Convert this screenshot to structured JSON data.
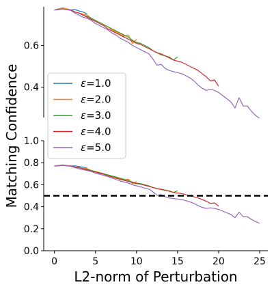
{
  "chart_data": {
    "type": "line",
    "xlabel": "L2-norm of Perturbation",
    "ylabel": "Matching Confidence",
    "legend": {
      "placement": "center-left"
    },
    "colors": [
      "#1f77b4",
      "#ff7f0e",
      "#2ca02c",
      "#d62728",
      "#9467bd"
    ],
    "panels": [
      {
        "name": "zoom",
        "xlim": [
          -1.3,
          26
        ],
        "ylim": [
          0.255,
          0.785
        ],
        "yticks": [
          0.4,
          0.6
        ],
        "ytick_labels": [
          "0.4",
          "0.6"
        ]
      },
      {
        "name": "full",
        "xlim": [
          -1.3,
          26
        ],
        "ylim": [
          0.0,
          1.0
        ],
        "yticks": [
          0.0,
          0.2,
          0.4,
          0.6,
          0.8,
          1.0
        ],
        "ytick_labels": [
          "0.0",
          "0.2",
          "0.4",
          "0.6",
          "0.8",
          "1.0"
        ],
        "xticks": [
          0,
          5,
          10,
          15,
          20,
          25
        ],
        "xtick_labels": [
          "0",
          "5",
          "10",
          "15",
          "20",
          "25"
        ],
        "hline": {
          "y": 0.5,
          "style": "dashed",
          "color": "#000000"
        }
      }
    ],
    "series": [
      {
        "name": "ε=1.0",
        "label_prefix": "ε",
        "label_value": "=1.0",
        "x": [
          0,
          0.5,
          1,
          1.5,
          2,
          2.5,
          3,
          3.5,
          4
        ],
        "y": [
          0.77,
          0.775,
          0.78,
          0.775,
          0.77,
          0.772,
          0.765,
          0.76,
          0.75
        ]
      },
      {
        "name": "ε=2.0",
        "label_prefix": "ε",
        "label_value": "=2.0",
        "x": [
          0,
          0.5,
          1,
          1.5,
          2,
          2.5,
          3,
          3.5,
          4,
          4.5,
          5,
          5.5,
          6,
          6.5,
          7,
          7.5,
          8,
          8.5,
          9,
          9.5,
          10
        ],
        "y": [
          0.77,
          0.775,
          0.78,
          0.776,
          0.77,
          0.76,
          0.755,
          0.75,
          0.745,
          0.73,
          0.72,
          0.71,
          0.7,
          0.69,
          0.675,
          0.665,
          0.655,
          0.645,
          0.65,
          0.61,
          0.63
        ]
      },
      {
        "name": "ε=3.0",
        "label_prefix": "ε",
        "label_value": "=3.0",
        "x": [
          0,
          0.5,
          1,
          1.5,
          2,
          2.5,
          3,
          3.5,
          4,
          4.5,
          5,
          5.5,
          6,
          6.5,
          7,
          7.5,
          8,
          8.5,
          9,
          9.5,
          10,
          10.5,
          11,
          11.5,
          12,
          12.5,
          13,
          13.5,
          14,
          14.5,
          15
        ],
        "y": [
          0.77,
          0.774,
          0.775,
          0.772,
          0.768,
          0.76,
          0.755,
          0.745,
          0.74,
          0.73,
          0.72,
          0.71,
          0.7,
          0.69,
          0.68,
          0.67,
          0.66,
          0.65,
          0.64,
          0.625,
          0.615,
          0.61,
          0.6,
          0.59,
          0.575,
          0.565,
          0.555,
          0.55,
          0.545,
          0.53,
          0.545
        ]
      },
      {
        "name": "ε=4.0",
        "label_prefix": "ε",
        "label_value": "=4.0",
        "x": [
          0,
          0.5,
          1,
          1.5,
          2,
          2.5,
          3,
          3.5,
          4,
          4.5,
          5,
          5.5,
          6,
          6.5,
          7,
          7.5,
          8,
          8.5,
          9,
          9.5,
          10,
          10.5,
          11,
          11.5,
          12,
          12.5,
          13,
          13.5,
          14,
          14.5,
          15,
          15.5,
          16,
          16.5,
          17,
          17.5,
          18,
          18.5,
          19,
          19.5,
          20
        ],
        "y": [
          0.77,
          0.772,
          0.775,
          0.772,
          0.77,
          0.76,
          0.755,
          0.745,
          0.735,
          0.725,
          0.715,
          0.705,
          0.695,
          0.68,
          0.67,
          0.66,
          0.65,
          0.64,
          0.63,
          0.62,
          0.61,
          0.605,
          0.595,
          0.585,
          0.575,
          0.565,
          0.56,
          0.55,
          0.54,
          0.53,
          0.525,
          0.52,
          0.51,
          0.5,
          0.49,
          0.48,
          0.465,
          0.45,
          0.43,
          0.435,
          0.405
        ]
      },
      {
        "name": "ε=5.0",
        "label_prefix": "ε",
        "label_value": "=5.0",
        "x": [
          0,
          0.5,
          1,
          1.5,
          2,
          2.5,
          3,
          3.5,
          4,
          4.5,
          5,
          5.5,
          6,
          6.5,
          7,
          7.5,
          8,
          8.5,
          9,
          9.5,
          10,
          10.5,
          11,
          11.5,
          12,
          12.5,
          13,
          13.5,
          14,
          14.5,
          15,
          15.5,
          16,
          16.5,
          17,
          17.5,
          18,
          18.5,
          19,
          19.5,
          20,
          20.5,
          21,
          21.5,
          22,
          22.5,
          23,
          23.5,
          24,
          24.5,
          25
        ],
        "y": [
          0.77,
          0.772,
          0.775,
          0.772,
          0.768,
          0.755,
          0.745,
          0.735,
          0.73,
          0.72,
          0.705,
          0.695,
          0.685,
          0.675,
          0.66,
          0.65,
          0.635,
          0.625,
          0.615,
          0.6,
          0.59,
          0.58,
          0.57,
          0.56,
          0.535,
          0.505,
          0.51,
          0.49,
          0.48,
          0.475,
          0.47,
          0.465,
          0.455,
          0.445,
          0.43,
          0.41,
          0.395,
          0.385,
          0.39,
          0.385,
          0.375,
          0.36,
          0.345,
          0.33,
          0.3,
          0.35,
          0.31,
          0.31,
          0.285,
          0.265,
          0.25
        ]
      }
    ]
  }
}
